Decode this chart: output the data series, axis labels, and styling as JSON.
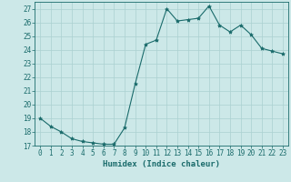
{
  "x": [
    0,
    1,
    2,
    3,
    4,
    5,
    6,
    7,
    8,
    9,
    10,
    11,
    12,
    13,
    14,
    15,
    16,
    17,
    18,
    19,
    20,
    21,
    22,
    23
  ],
  "y": [
    19,
    18.4,
    18,
    17.5,
    17.3,
    17.2,
    17.1,
    17.1,
    18.3,
    21.5,
    24.4,
    24.7,
    27.0,
    26.1,
    26.2,
    26.3,
    27.2,
    25.8,
    25.3,
    25.8,
    25.1,
    24.1,
    23.9,
    23.7
  ],
  "line_color": "#1a6b6b",
  "marker": "*",
  "marker_size": 3,
  "bg_color": "#cce8e8",
  "grid_color": "#aad0d0",
  "xlabel": "Humidex (Indice chaleur)",
  "ylim": [
    17,
    27.5
  ],
  "xlim": [
    -0.5,
    23.5
  ],
  "yticks": [
    17,
    18,
    19,
    20,
    21,
    22,
    23,
    24,
    25,
    26,
    27
  ],
  "xticks": [
    0,
    1,
    2,
    3,
    4,
    5,
    6,
    7,
    8,
    9,
    10,
    11,
    12,
    13,
    14,
    15,
    16,
    17,
    18,
    19,
    20,
    21,
    22,
    23
  ],
  "tick_color": "#1a6b6b",
  "tick_label_size": 5.5,
  "xlabel_size": 6.5,
  "linewidth": 0.8
}
